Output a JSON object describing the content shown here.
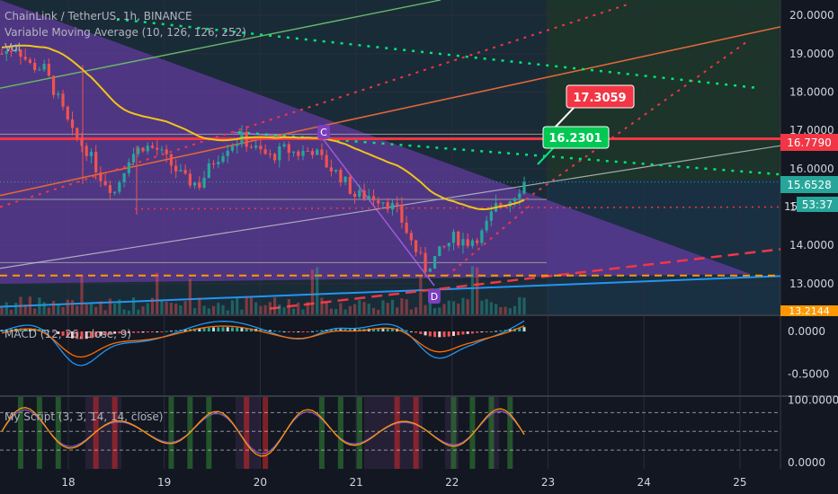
{
  "header": {
    "title": "ChainLink / TetherUS, 1h, BINANCE",
    "indicator1": "Variable Moving Average (10, 126, 126, 252)",
    "indicator2": "Vol"
  },
  "macd": {
    "label": "MACD (12, 26, close, 9)"
  },
  "script": {
    "label": "My Script (3, 3, 14, 14, close)"
  },
  "annotations": {
    "point_c": "C",
    "point_d": "D",
    "target_high": "17.3059",
    "target_mid": "16.2301"
  },
  "price_badges": {
    "red_level": "16.7790",
    "last_price": "15.6528",
    "countdown": "53:37",
    "partial": "15",
    "bottom": "13.2144"
  },
  "colors": {
    "background": "#131722",
    "up": "#26a69a",
    "down": "#ef5350",
    "vma": "#f0c419",
    "red_level": "#f23645",
    "green_label": "#00c853",
    "purple": "#7b3fbf",
    "macd": "#2196f3",
    "signal": "#ff6d00",
    "script_line": "#ff9800"
  },
  "chart_data": [
    {
      "type": "candlestick",
      "title": "ChainLink / TetherUS, 1h, BINANCE",
      "x_ticks": [
        "18",
        "19",
        "20",
        "21",
        "22",
        "23",
        "24",
        "25"
      ],
      "y_ticks": [
        20.0,
        19.0,
        18.0,
        17.0,
        16.0,
        15.0,
        14.0,
        13.0
      ],
      "ylim": [
        12.2,
        20.4
      ],
      "price_levels": {
        "red_line": 16.779,
        "last": 15.6528,
        "bottom": 13.2144
      },
      "targets": [
        17.3059,
        16.2301
      ],
      "close_path": [
        19.0,
        19.2,
        18.7,
        18.6,
        17.8,
        16.9,
        16.5,
        15.8,
        15.4,
        16.3,
        16.6,
        16.5,
        16.1,
        15.7,
        15.6,
        16.2,
        16.6,
        16.8,
        16.5,
        16.3,
        16.5,
        16.4,
        16.5,
        16.1,
        15.8,
        15.3,
        15.3,
        15.2,
        14.9,
        14.1,
        13.4,
        13.8,
        14.2,
        14.1,
        14.3,
        15.0,
        15.2,
        15.65
      ]
    },
    {
      "type": "line",
      "title": "MACD (12, 26, close, 9)",
      "y_ticks": [
        0.0,
        -0.5
      ],
      "ylim": [
        -0.75,
        0.18
      ]
    },
    {
      "type": "line",
      "title": "My Script (3, 3, 14, 14, close)",
      "y_ticks": [
        100.0,
        0.0
      ],
      "ylim": [
        -10,
        105
      ]
    }
  ]
}
